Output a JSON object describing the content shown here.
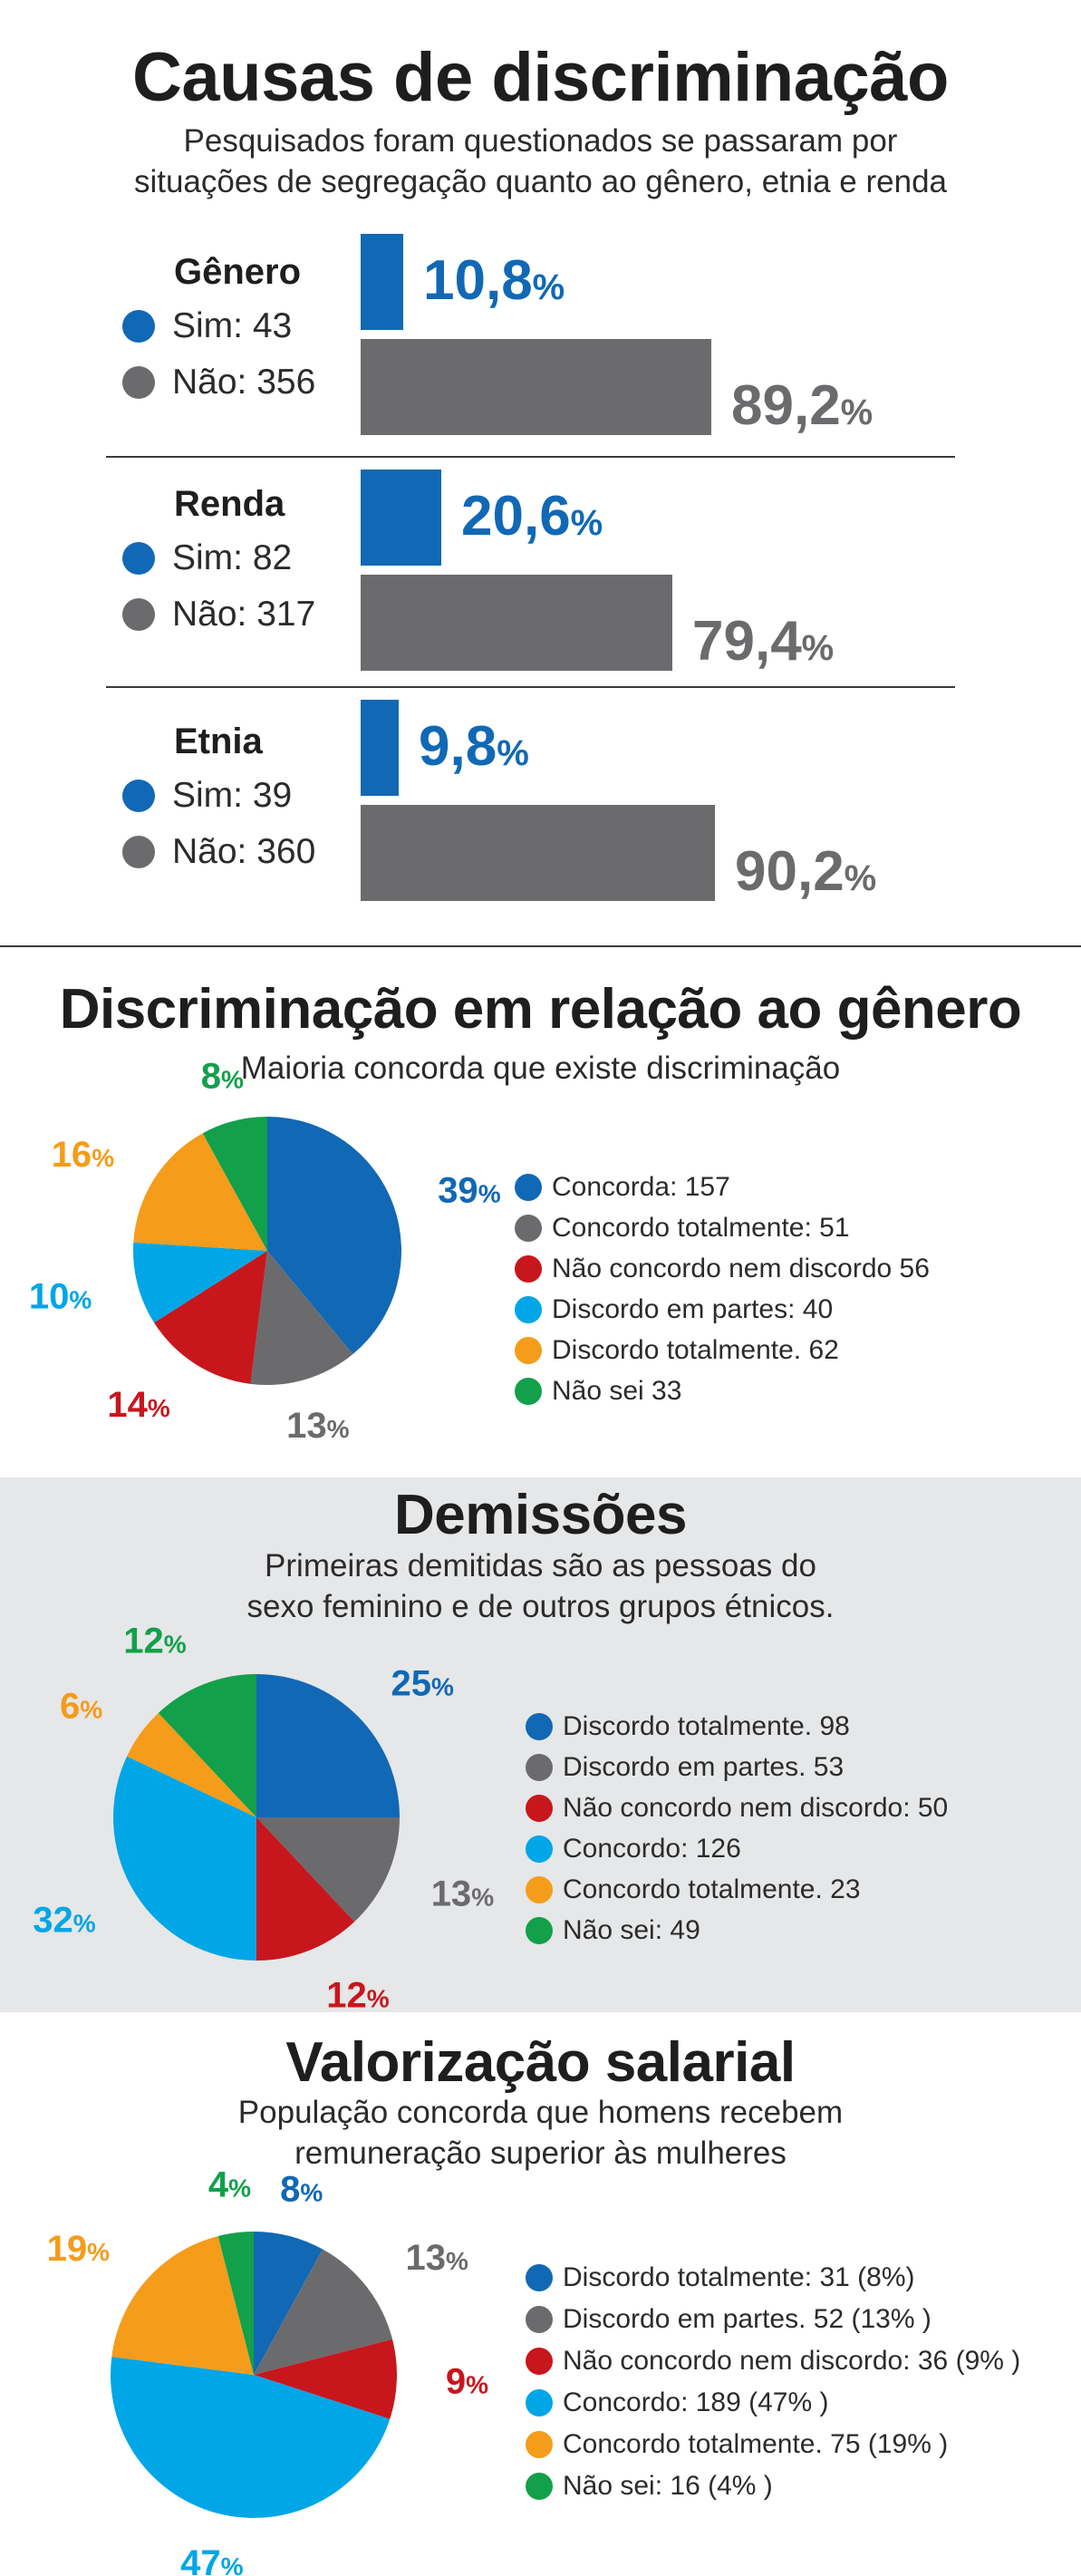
{
  "colors": {
    "blue": "#1168b5",
    "gray": "#6b6b6e",
    "red": "#c8161d",
    "cyan": "#00a6e6",
    "orange": "#f59c1a",
    "green": "#12a04a"
  },
  "section1": {
    "title": "Causas de discriminação",
    "subtitle_line1": "Pesquisados foram questionados se passaram por",
    "subtitle_line2": "situações de segregação quanto ao gênero, etnia e renda"
  },
  "section2": {
    "title": "Discriminação em relação ao gênero",
    "subtitle": "Maioria concorda que existe discriminação"
  },
  "section3": {
    "title": "Demissões",
    "subtitle_line1": "Primeiras demitidas são as pessoas do",
    "subtitle_line2": "sexo feminino e de outros grupos étnicos."
  },
  "section4": {
    "title": "Valorização salarial",
    "subtitle_line1": "População concorda que homens recebem",
    "subtitle_line2": "remuneração superior às mulheres"
  },
  "chart_data": [
    {
      "type": "bar",
      "title": "Causas de discriminação",
      "categories": [
        "Gênero",
        "Renda",
        "Etnia"
      ],
      "series": [
        {
          "name": "Sim",
          "color": "#1168b5",
          "counts": [
            43,
            82,
            39
          ],
          "values": [
            10.8,
            20.6,
            9.8
          ],
          "labels": [
            "10,8",
            "20,6",
            "9,8"
          ]
        },
        {
          "name": "Não",
          "color": "#6b6b6e",
          "counts": [
            356,
            317,
            360
          ],
          "values": [
            89.2,
            79.4,
            90.2
          ],
          "labels": [
            "89,2",
            "79,4",
            "90,2"
          ]
        }
      ],
      "legend_labels": [
        [
          "Sim: 43",
          "Não: 356"
        ],
        [
          "Sim: 82",
          "Não: 317"
        ],
        [
          "Sim: 39",
          "Não: 360"
        ]
      ],
      "percent_sign": "%"
    },
    {
      "type": "pie",
      "title": "Discriminação em relação ao gênero",
      "slices": [
        {
          "legend": "Concorda: 157",
          "value": 39,
          "label": "39",
          "color": "#1168b5"
        },
        {
          "legend": "Concordo totalmente: 51",
          "value": 13,
          "label": "13",
          "color": "#6b6b6e"
        },
        {
          "legend": "Não concordo nem discordo 56",
          "value": 14,
          "label": "14",
          "color": "#c8161d"
        },
        {
          "legend": "Discordo em partes: 40",
          "value": 10,
          "label": "10",
          "color": "#00a6e6"
        },
        {
          "legend": "Discordo totalmente. 62",
          "value": 16,
          "label": "16",
          "color": "#f59c1a"
        },
        {
          "legend": "Não sei 33",
          "value": 8,
          "label": "8",
          "color": "#12a04a"
        }
      ]
    },
    {
      "type": "pie",
      "title": "Demissões",
      "slices": [
        {
          "legend": "Discordo totalmente. 98",
          "value": 25,
          "label": "25",
          "color": "#1168b5"
        },
        {
          "legend": "Discordo em partes. 53",
          "value": 13,
          "label": "13",
          "color": "#6b6b6e"
        },
        {
          "legend": "Não concordo nem discordo: 50",
          "value": 12,
          "label": "12",
          "color": "#c8161d"
        },
        {
          "legend": "Concordo: 126",
          "value": 32,
          "label": "32",
          "color": "#00a6e6"
        },
        {
          "legend": "Concordo totalmente. 23",
          "value": 6,
          "label": "6",
          "color": "#f59c1a"
        },
        {
          "legend": "Não sei: 49",
          "value": 12,
          "label": "12",
          "color": "#12a04a"
        }
      ]
    },
    {
      "type": "pie",
      "title": "Valorização salarial",
      "slices": [
        {
          "legend": "Discordo totalmente: 31 (8%)",
          "value": 8,
          "label": "8",
          "color": "#1168b5"
        },
        {
          "legend": "Discordo em partes. 52 (13% )",
          "value": 13,
          "label": "13",
          "color": "#6b6b6e"
        },
        {
          "legend": "Não concordo nem discordo: 36 (9% )",
          "value": 9,
          "label": "9",
          "color": "#c8161d"
        },
        {
          "legend": "Concordo: 189 (47% )",
          "value": 47,
          "label": "47",
          "color": "#00a6e6"
        },
        {
          "legend": "Concordo totalmente. 75 (19% )",
          "value": 19,
          "label": "19",
          "color": "#f59c1a"
        },
        {
          "legend": "Não sei: 16 (4% )",
          "value": 4,
          "label": "4",
          "color": "#12a04a"
        }
      ]
    }
  ]
}
